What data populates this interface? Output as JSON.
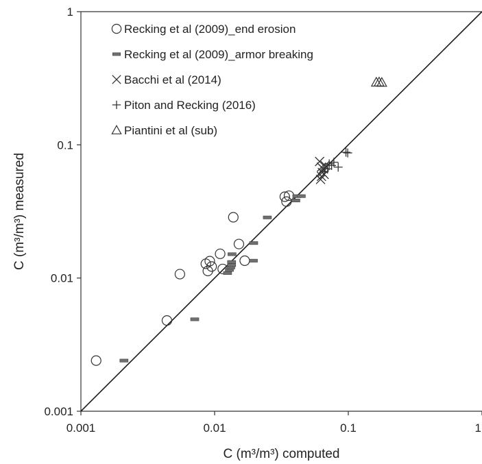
{
  "chart_data": {
    "type": "scatter",
    "xscale": "log",
    "yscale": "log",
    "xlim": [
      0.001,
      1
    ],
    "ylim": [
      0.001,
      1
    ],
    "xlabel": "C (m³/m³)  computed",
    "ylabel": "C (m³/m³)  measured",
    "xticks": [
      {
        "value": 0.001,
        "label": "0.001"
      },
      {
        "value": 0.01,
        "label": "0.01"
      },
      {
        "value": 0.1,
        "label": "0.1"
      },
      {
        "value": 1,
        "label": "1"
      }
    ],
    "yticks": [
      {
        "value": 0.001,
        "label": "0.001"
      },
      {
        "value": 0.01,
        "label": "0.01"
      },
      {
        "value": 0.1,
        "label": "0.1"
      },
      {
        "value": 1,
        "label": "1"
      }
    ],
    "grid": false,
    "legend_position": "top-left",
    "reference_line": {
      "from": [
        0.001,
        0.001
      ],
      "to": [
        1,
        1
      ]
    },
    "series": [
      {
        "name": "Recking et al (2009)_end erosion",
        "marker": "circle",
        "points": [
          [
            0.0013,
            0.0024
          ],
          [
            0.0044,
            0.0048
          ],
          [
            0.0055,
            0.0107
          ],
          [
            0.0086,
            0.0128
          ],
          [
            0.0089,
            0.0113
          ],
          [
            0.0092,
            0.0134
          ],
          [
            0.0095,
            0.0122
          ],
          [
            0.011,
            0.0152
          ],
          [
            0.0115,
            0.0117
          ],
          [
            0.0138,
            0.0286
          ],
          [
            0.0152,
            0.018
          ],
          [
            0.0168,
            0.0135
          ],
          [
            0.0335,
            0.0408
          ],
          [
            0.0345,
            0.0375
          ],
          [
            0.036,
            0.0415
          ]
        ]
      },
      {
        "name": "Recking et al (2009)_armor breaking",
        "marker": "dash",
        "points": [
          [
            0.0021,
            0.0024
          ],
          [
            0.0071,
            0.0049
          ],
          [
            0.0125,
            0.0109
          ],
          [
            0.0129,
            0.0115
          ],
          [
            0.0132,
            0.012
          ],
          [
            0.0134,
            0.0125
          ],
          [
            0.0134,
            0.0132
          ],
          [
            0.0135,
            0.0151
          ],
          [
            0.0195,
            0.0135
          ],
          [
            0.0196,
            0.0183
          ],
          [
            0.0248,
            0.0285
          ],
          [
            0.0405,
            0.0382
          ],
          [
            0.0412,
            0.0412
          ],
          [
            0.0445,
            0.0412
          ]
        ]
      },
      {
        "name": "Bacchi et al (2014)",
        "marker": "x",
        "points": [
          [
            0.061,
            0.075
          ],
          [
            0.062,
            0.055
          ],
          [
            0.063,
            0.058
          ],
          [
            0.063,
            0.068
          ],
          [
            0.064,
            0.062
          ],
          [
            0.065,
            0.066
          ],
          [
            0.066,
            0.06
          ],
          [
            0.067,
            0.07
          ]
        ]
      },
      {
        "name": "Piton and Recking (2016)",
        "marker": "plus",
        "points": [
          [
            0.066,
            0.063
          ],
          [
            0.07,
            0.066
          ],
          [
            0.072,
            0.072
          ],
          [
            0.075,
            0.07
          ],
          [
            0.078,
            0.074
          ],
          [
            0.084,
            0.068
          ],
          [
            0.096,
            0.088
          ],
          [
            0.099,
            0.087
          ]
        ]
      },
      {
        "name": "Piantini et al (sub)",
        "marker": "triangle",
        "points": [
          [
            0.162,
            0.295
          ],
          [
            0.17,
            0.296
          ],
          [
            0.178,
            0.294
          ]
        ]
      }
    ]
  }
}
